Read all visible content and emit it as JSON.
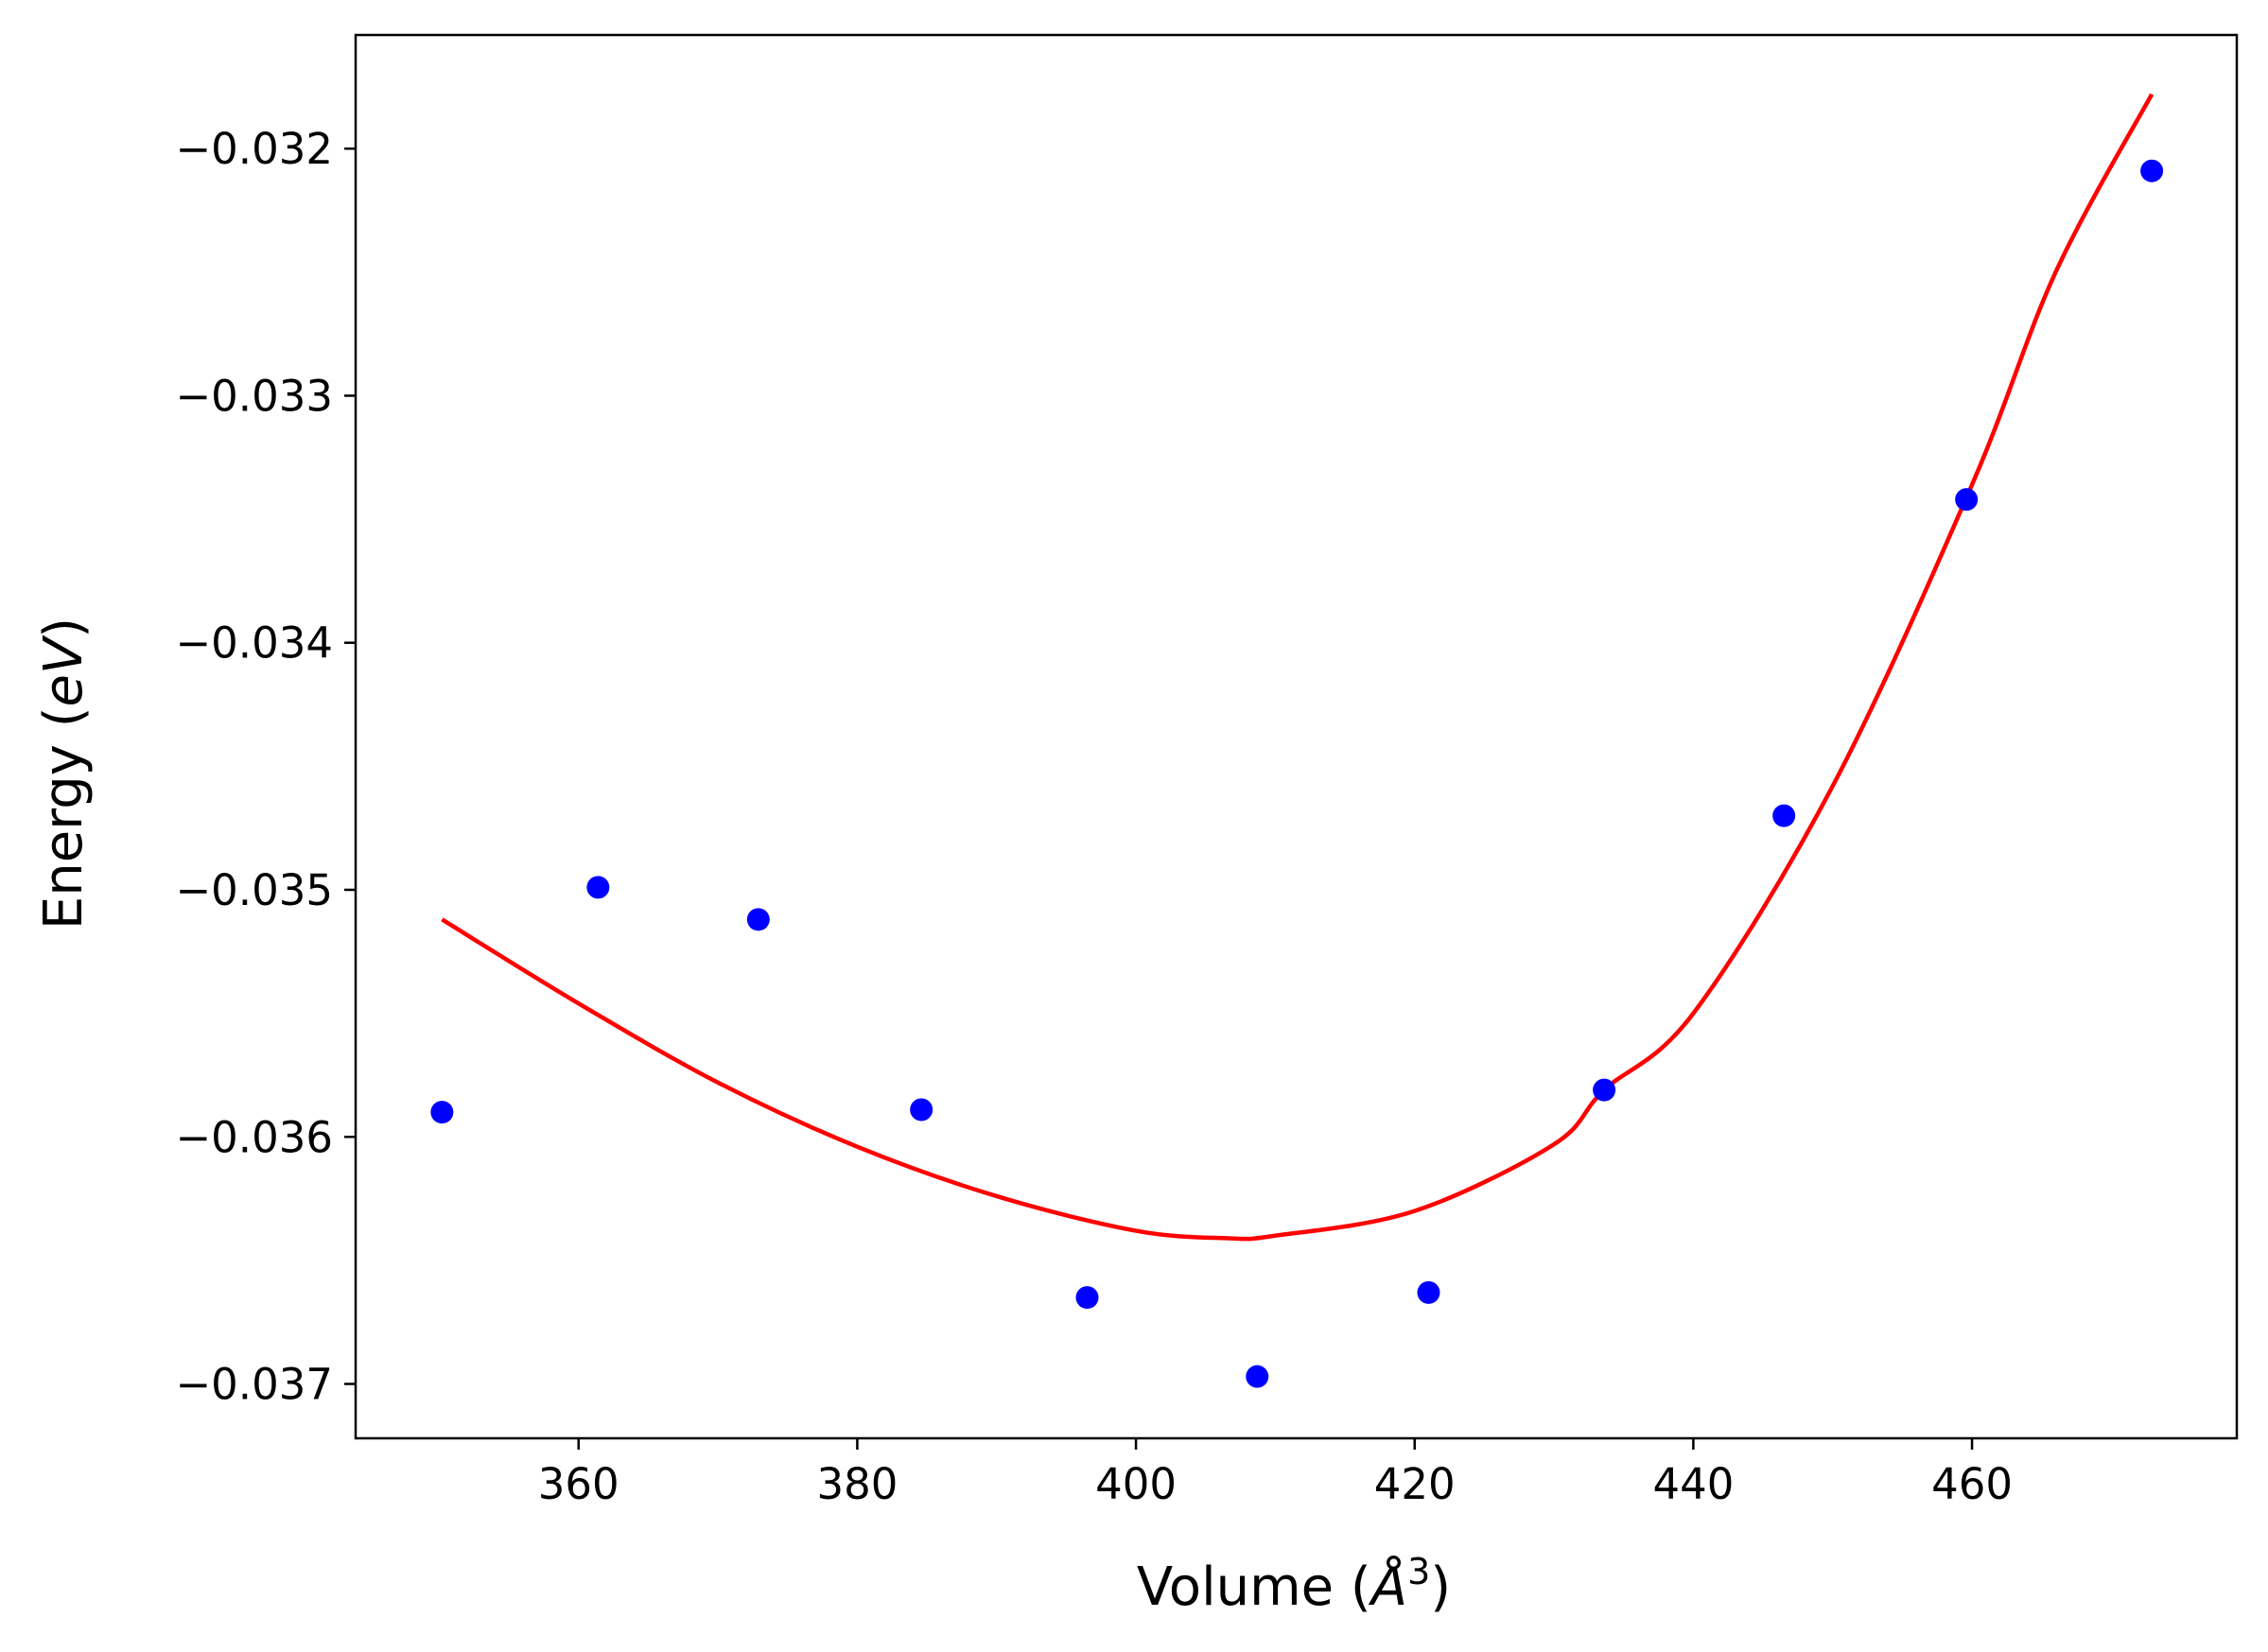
{
  "chart_data": {
    "type": "scatter",
    "xlabel": "Volume (Å³)",
    "xlabel_parts": {
      "prefix": "Volume (",
      "symbol": "Å",
      "exponent": "3",
      "suffix": ")"
    },
    "ylabel": "Energy (eV)",
    "ylabel_parts": {
      "prefix": "Energy (",
      "unit": "eV",
      "suffix": ")"
    },
    "xlim": [
      344,
      479
    ],
    "ylim": [
      -0.03722,
      -0.03154
    ],
    "xticks": [
      {
        "value": 360,
        "label": "360"
      },
      {
        "value": 380,
        "label": "380"
      },
      {
        "value": 400,
        "label": "400"
      },
      {
        "value": 420,
        "label": "420"
      },
      {
        "value": 440,
        "label": "440"
      },
      {
        "value": 460,
        "label": "460"
      }
    ],
    "yticks": [
      {
        "value": -0.032,
        "label": "−0.032"
      },
      {
        "value": -0.033,
        "label": "−0.033"
      },
      {
        "value": -0.034,
        "label": "−0.034"
      },
      {
        "value": -0.035,
        "label": "−0.035"
      },
      {
        "value": -0.036,
        "label": "−0.036"
      },
      {
        "value": -0.037,
        "label": "−0.037"
      }
    ],
    "grid": false,
    "legend": "none",
    "series": [
      {
        "kind": "scatter",
        "color": "#0000ff",
        "points": [
          {
            "x": 350.2,
            "y": -0.0359
          },
          {
            "x": 361.4,
            "y": -0.03499
          },
          {
            "x": 372.9,
            "y": -0.03512
          },
          {
            "x": 384.6,
            "y": -0.03589
          },
          {
            "x": 396.5,
            "y": -0.03665
          },
          {
            "x": 408.7,
            "y": -0.03697
          },
          {
            "x": 421.0,
            "y": -0.03663
          },
          {
            "x": 433.6,
            "y": -0.03581
          },
          {
            "x": 446.5,
            "y": -0.0347
          },
          {
            "x": 459.6,
            "y": -0.03342
          },
          {
            "x": 472.9,
            "y": -0.03209
          }
        ]
      },
      {
        "kind": "line",
        "color": "#ff0000",
        "points": [
          {
            "x": 350.2,
            "y": -0.03512
          },
          {
            "x": 360,
            "y": -0.03546
          },
          {
            "x": 370,
            "y": -0.03578
          },
          {
            "x": 380,
            "y": -0.03604
          },
          {
            "x": 390,
            "y": -0.03624
          },
          {
            "x": 400,
            "y": -0.03638
          },
          {
            "x": 406.5,
            "y": -0.03641
          },
          {
            "x": 410,
            "y": -0.0364
          },
          {
            "x": 420,
            "y": -0.0363
          },
          {
            "x": 430,
            "y": -0.03603
          },
          {
            "x": 433.6,
            "y": -0.03581
          },
          {
            "x": 440,
            "y": -0.0355
          },
          {
            "x": 450,
            "y": -0.03458
          },
          {
            "x": 460,
            "y": -0.03336
          },
          {
            "x": 466,
            "y": -0.0325
          },
          {
            "x": 472.9,
            "y": -0.03178
          }
        ]
      }
    ]
  }
}
